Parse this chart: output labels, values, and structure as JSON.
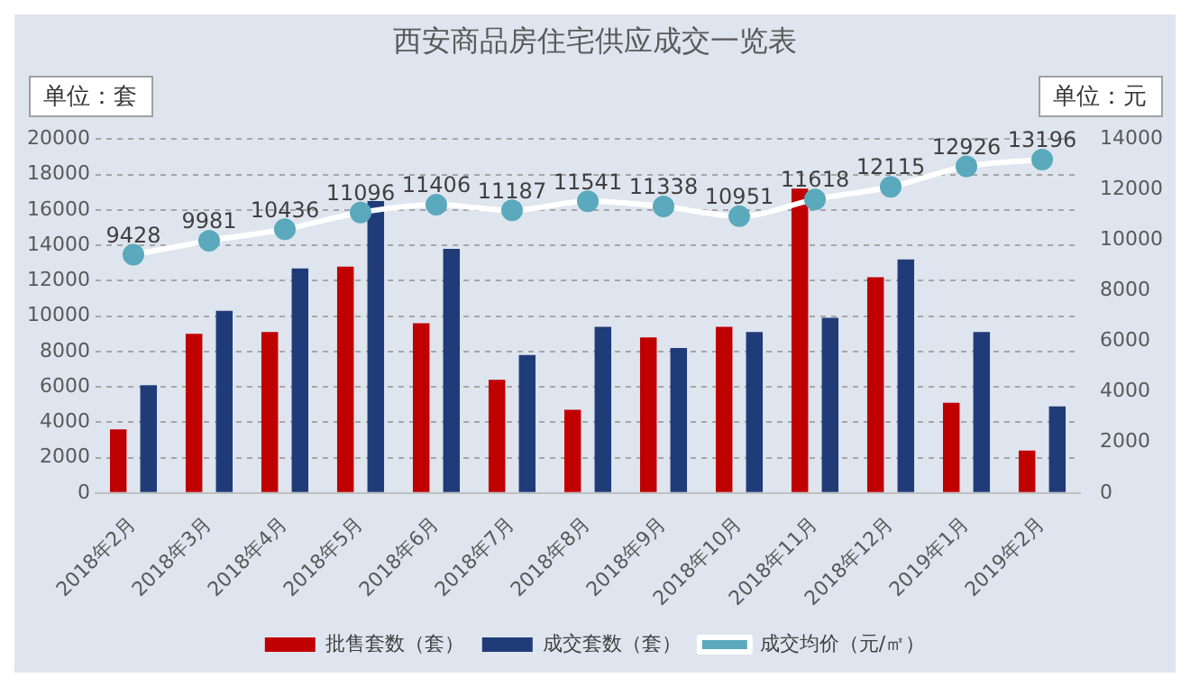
{
  "chart_data": {
    "type": "bar",
    "title": "西安商品房住宅供应成交一览表",
    "ylabel": "单位：套",
    "y2label": "单位：元",
    "categories": [
      "2018年2月",
      "2018年3月",
      "2018年4月",
      "2018年5月",
      "2018年6月",
      "2018年7月",
      "2018年8月",
      "2018年9月",
      "2018年10月",
      "2018年11月",
      "2018年12月",
      "2019年1月",
      "2019年2月"
    ],
    "series": [
      {
        "name": "批售套数（套）",
        "color": "#c00000",
        "values": [
          3600,
          9000,
          9100,
          12800,
          9600,
          6400,
          4700,
          8800,
          9400,
          17200,
          12200,
          5100,
          2400
        ]
      },
      {
        "name": "成交套数（套）",
        "color": "#203c78",
        "values": [
          6100,
          10300,
          12700,
          16500,
          13800,
          7800,
          9400,
          8200,
          9100,
          9900,
          13200,
          9100,
          4900
        ]
      },
      {
        "name": "成交均价（元/㎡）",
        "type": "line",
        "axis": "y2",
        "color": "#5aa9bd",
        "marker": "circle",
        "values": [
          9428,
          9981,
          10436,
          11096,
          11406,
          11187,
          11541,
          11338,
          10951,
          11618,
          12115,
          12926,
          13196
        ],
        "value_labels": [
          "9428",
          "9981",
          "10436",
          "11096",
          "11406",
          "11187",
          "11541",
          "11338",
          "10951",
          "11618",
          "12115",
          "12926",
          "13196"
        ]
      }
    ],
    "ylim": [
      0,
      20000
    ],
    "yticks": [
      0,
      2000,
      4000,
      6000,
      8000,
      10000,
      12000,
      14000,
      16000,
      18000,
      20000
    ],
    "y2lim": [
      0,
      14000
    ],
    "y2ticks": [
      0,
      2000,
      4000,
      6000,
      8000,
      10000,
      12000,
      14000
    ],
    "grid": "y",
    "legend": "bottom"
  }
}
